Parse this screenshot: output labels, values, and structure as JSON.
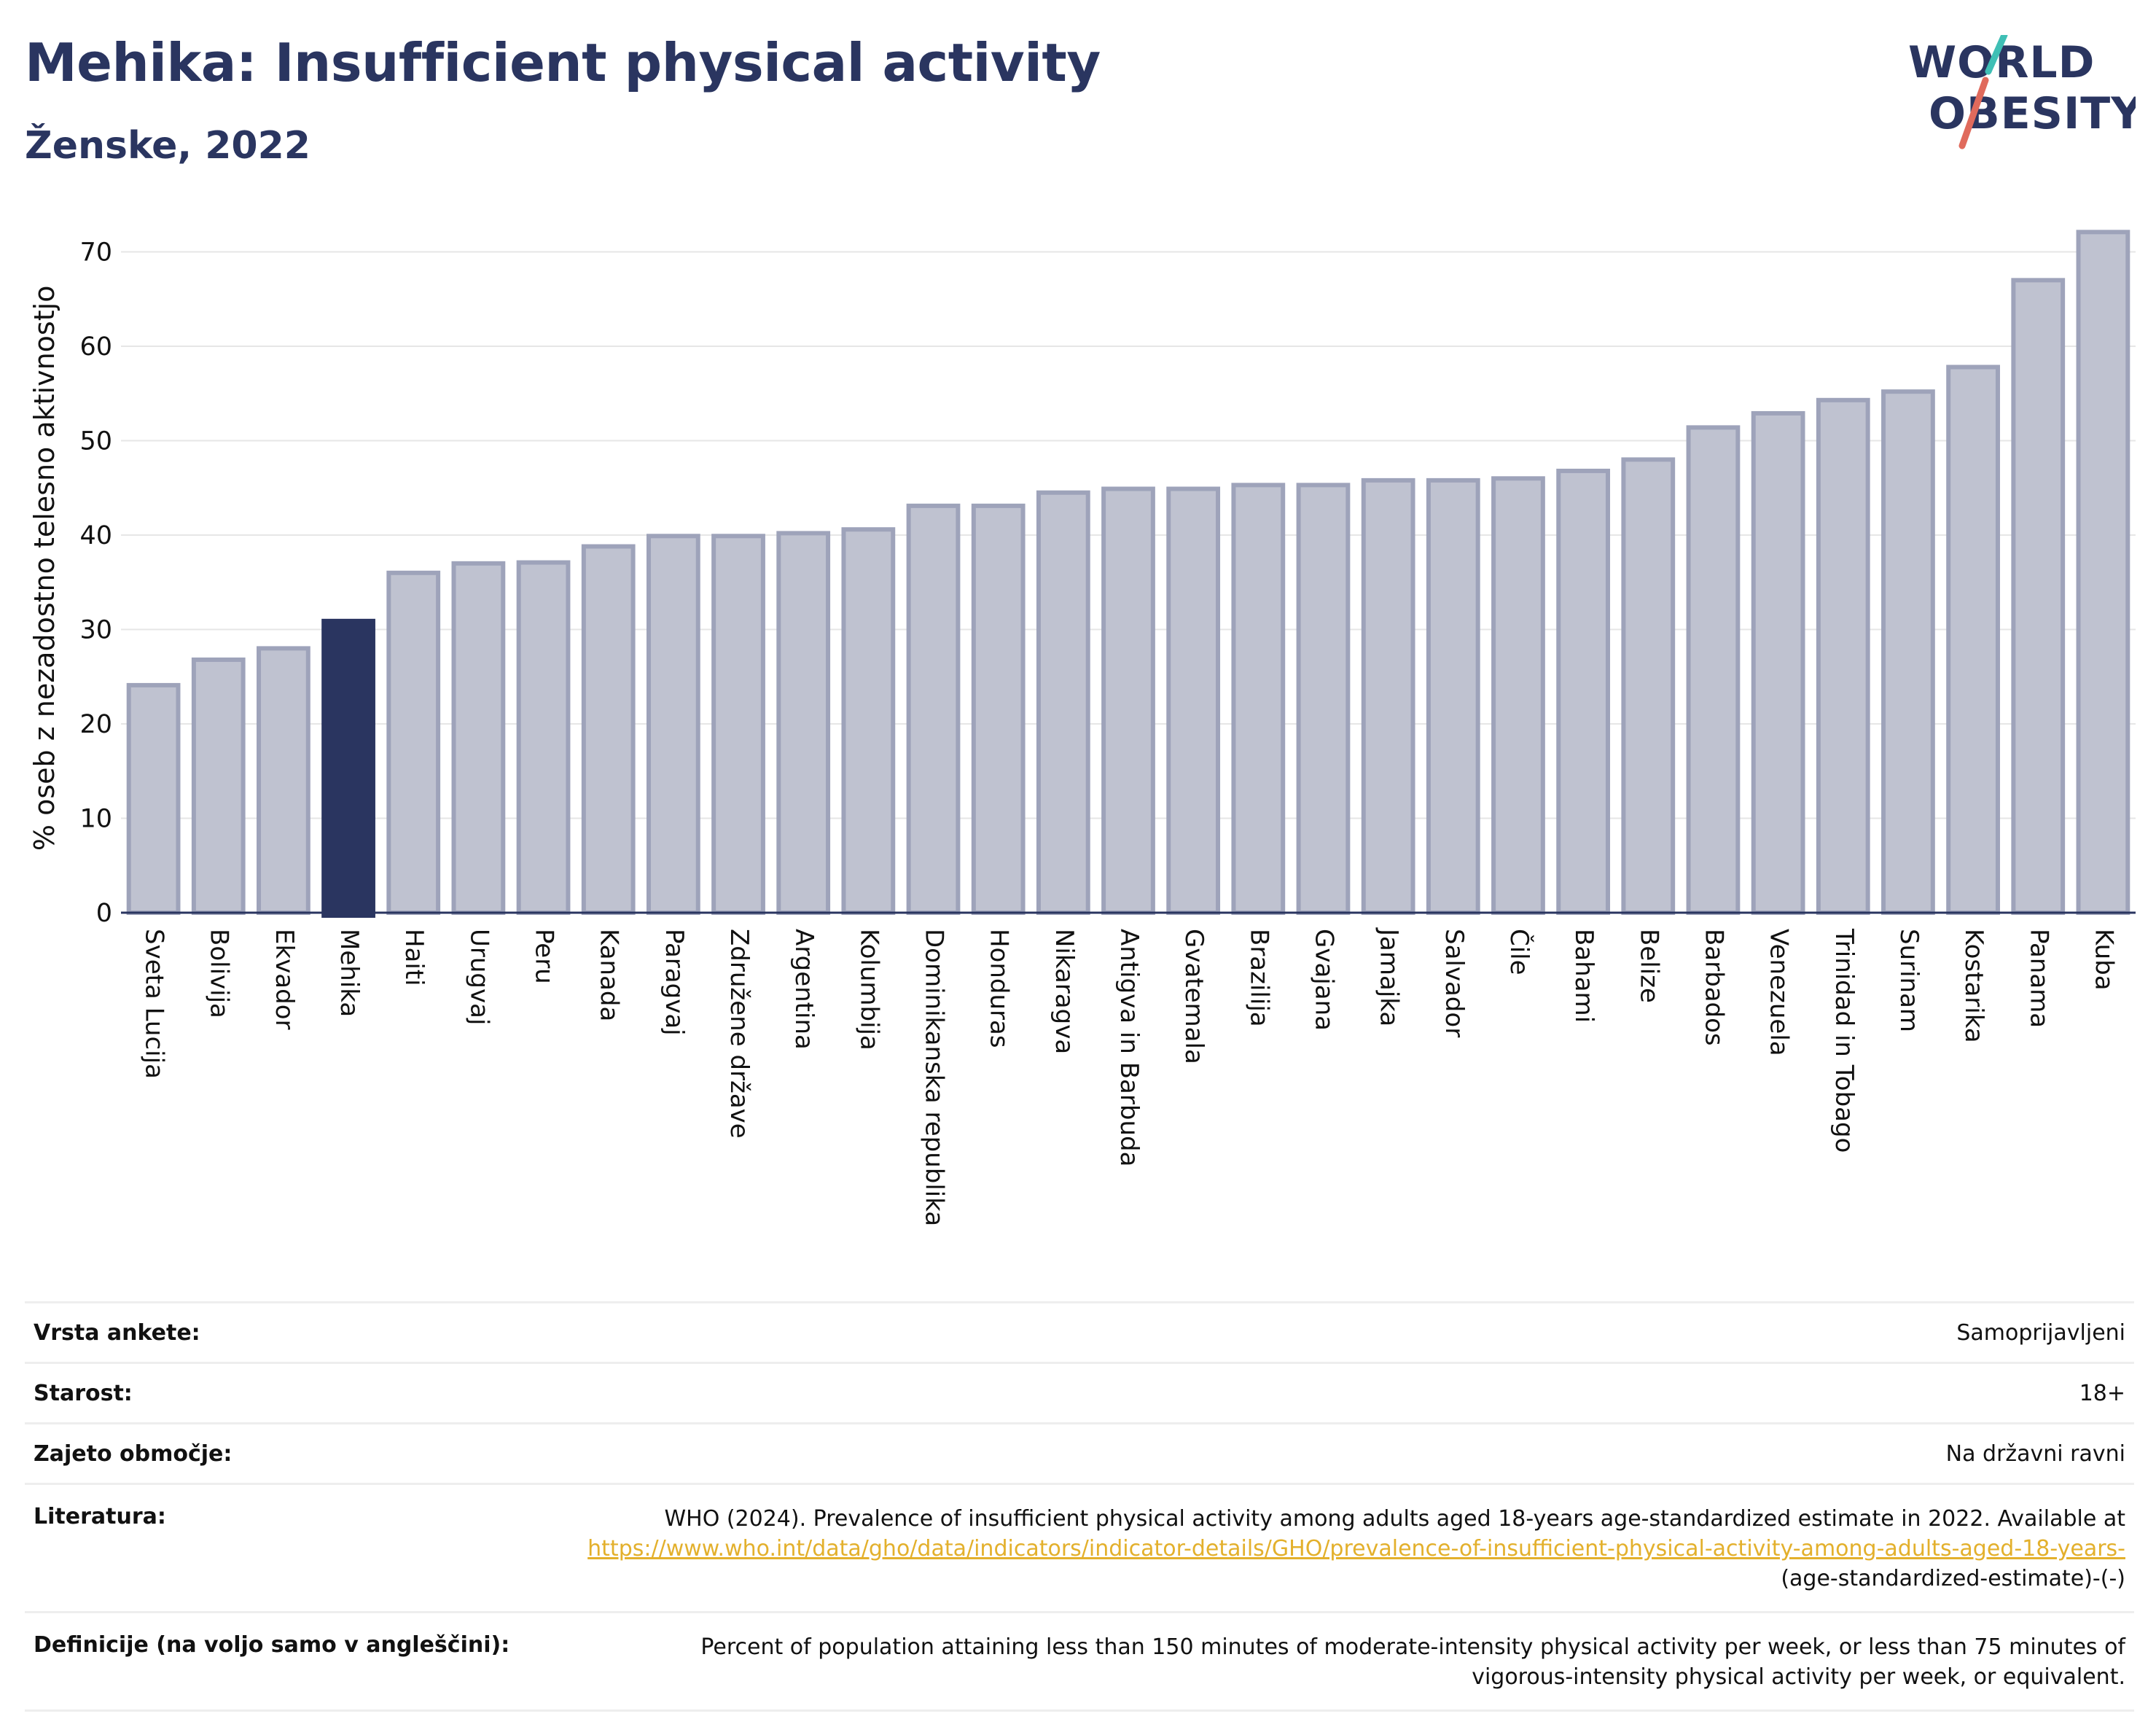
{
  "header": {
    "title": "Mehika: Insufficient physical activity",
    "subtitle": "Ženske, 2022"
  },
  "logo": {
    "line1": "WORLD",
    "line2": "OBESITY"
  },
  "colors": {
    "bar": "#bfc2d0",
    "bar_border": "#9ea3ba",
    "highlight": "#2a3560",
    "grid": "#e6e6e6"
  },
  "chart_data": {
    "type": "bar",
    "ylabel": "% oseb z nezadostno telesno aktivnostjo",
    "ylim": [
      0,
      73
    ],
    "yticks": [
      0,
      10,
      20,
      30,
      40,
      50,
      60,
      70
    ],
    "grid": true,
    "highlight": "Mehika",
    "categories": [
      "Sveta Lucija",
      "Bolivija",
      "Ekvador",
      "Mehika",
      "Haiti",
      "Urugvaj",
      "Peru",
      "Kanada",
      "Paragvaj",
      "Združene države",
      "Argentina",
      "Kolumbija",
      "Dominikanska republika",
      "Honduras",
      "Nikaragva",
      "Antigva in Barbuda",
      "Gvatemala",
      "Brazilija",
      "Gvajana",
      "Jamajka",
      "Salvador",
      "Čile",
      "Bahami",
      "Belize",
      "Barbados",
      "Venezuela",
      "Trinidad in Tobago",
      "Surinam",
      "Kostarika",
      "Panama",
      "Kuba"
    ],
    "values": [
      24.1,
      26.8,
      28.0,
      30.9,
      36.0,
      37.0,
      37.1,
      38.8,
      39.9,
      39.9,
      40.2,
      40.6,
      43.1,
      43.1,
      44.5,
      44.9,
      44.9,
      45.3,
      45.3,
      45.8,
      45.8,
      46.0,
      46.8,
      48.0,
      51.4,
      52.9,
      54.3,
      55.2,
      57.8,
      67.0,
      72.1
    ]
  },
  "info": {
    "survey_type_label": "Vrsta ankete:",
    "survey_type_value": "Samoprijavljeni",
    "age_label": "Starost:",
    "age_value": "18+",
    "coverage_label": "Zajeto območje:",
    "coverage_value": "Na državni ravni",
    "literature_label": "Literatura:",
    "literature_text": "WHO (2024). Prevalence of insufficient physical activity among adults aged 18-years age-standardized estimate in 2022. Available at ",
    "literature_link": "https://www.who.int/data/gho/data/indicators/indicator-details/GHO/prevalence-of-insufficient-physical-activity-among-adults-aged-18-years-",
    "literature_suffix": "(age-standardized-estimate)-(-)",
    "definitions_label": "Definicije (na voljo samo v angleščini):",
    "definitions_value": "Percent of population attaining less than 150 minutes of moderate-intensity physical activity per week, or less than 75 minutes of vigorous-intensity physical activity per week, or equivalent."
  }
}
